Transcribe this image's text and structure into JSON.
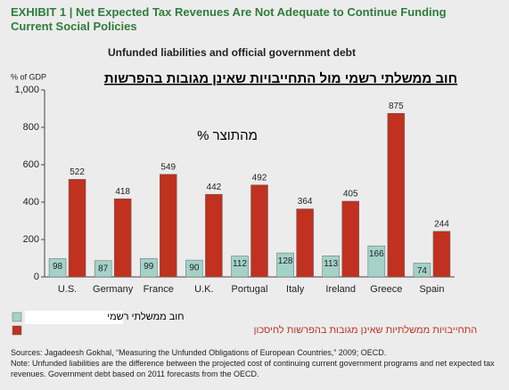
{
  "chart_data": {
    "type": "bar",
    "title": "EXHIBIT 1 | Net Expected Tax Revenues Are Not Adequate to Continue Funding Current Social Policies",
    "subtitle": "Unfunded liabilities and official government debt",
    "overlay_title": "חוב ממשלתי רשמי מול התחייבויות שאינן מגובות בהפרשות",
    "y_unit": "% of GDP",
    "annotation": "% מהתוצר",
    "categories": [
      "U.S.",
      "Germany",
      "France",
      "U.K.",
      "Portugal",
      "Italy",
      "Ireland",
      "Greece",
      "Spain"
    ],
    "series": [
      {
        "name": "חוב ממשלתי רשמי",
        "color": "#a3d2c8",
        "values": [
          98,
          87,
          99,
          90,
          112,
          128,
          113,
          166,
          74
        ]
      },
      {
        "name": "התחייבויות ממשלתיות שאינן מגובות בהפרשות לחיסכון",
        "color": "#c0311f",
        "values": [
          522,
          418,
          549,
          442,
          492,
          364,
          405,
          875,
          244
        ]
      }
    ],
    "ylim": [
      0,
      1000
    ],
    "yticks": [
      0,
      200,
      400,
      600,
      800,
      {
        "value": 1000,
        "label": "1,000"
      }
    ],
    "grid": false,
    "notes": [
      "Sources: Jagadeesh Gokhal, “Measuring the Unfunded Obligations of European Countries,” 2009; OECD.",
      "Note: Unfunded liabilities are the difference between the projected cost of continuing current government programs and net expected tax revenues. Government debt based on 2011 forecasts from the OECD."
    ]
  }
}
